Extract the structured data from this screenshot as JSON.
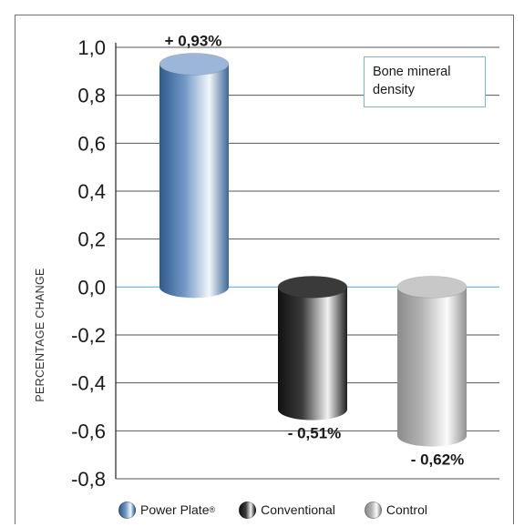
{
  "chart_data": {
    "type": "bar",
    "title": "",
    "xlabel": "",
    "ylabel": "PERCENTAGE CHANGE",
    "ylim": [
      -0.8,
      1.0
    ],
    "yticks": [
      1.0,
      0.8,
      0.6,
      0.4,
      0.2,
      0.0,
      -0.2,
      -0.4,
      -0.6,
      -0.8
    ],
    "ytick_labels": [
      "1,0",
      "0,8",
      "0,6",
      "0,4",
      "0,2",
      "0,0",
      "-0,2",
      "-0,4",
      "-0,6",
      "-0,8"
    ],
    "grid": true,
    "categories": [
      "Power Plate",
      "Conventional",
      "Control"
    ],
    "values": [
      0.93,
      -0.51,
      -0.62
    ],
    "data_labels": [
      "+ 0,93%",
      "- 0,51%",
      "- 0,62%"
    ],
    "annotation": "Bone mineral density",
    "legend": {
      "placement": "bottom",
      "entries": [
        {
          "label": "Power Plate",
          "superscript": "®",
          "color": "#6f95c4"
        },
        {
          "label": "Conventional",
          "color": "#2a2a2a"
        },
        {
          "label": "Control",
          "color": "#a9a9a9"
        }
      ]
    },
    "colors": {
      "power_plate": "#6f95c4",
      "conventional": "#2a2a2a",
      "control": "#a9a9a9",
      "zero_line": "#6aaed6",
      "zero_label": "#4f9fd0",
      "grid": "#555555"
    }
  }
}
